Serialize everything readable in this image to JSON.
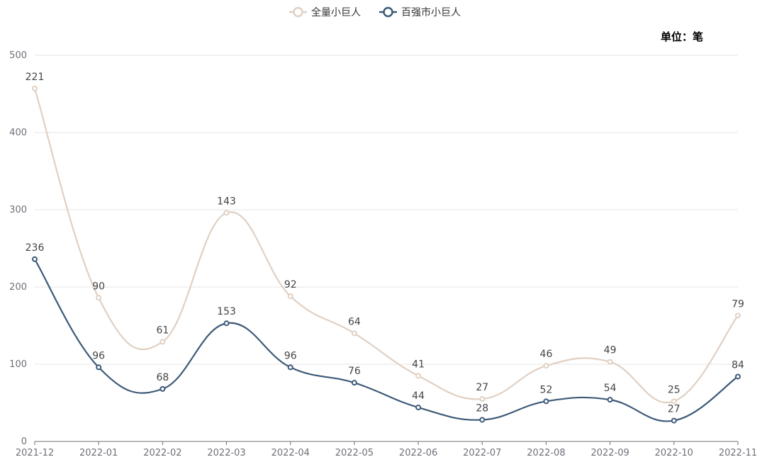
{
  "chart_data": {
    "type": "line",
    "title": "",
    "unit_label": "单位：笔",
    "categories": [
      "2021-12",
      "2022-01",
      "2022-02",
      "2022-03",
      "2022-04",
      "2022-05",
      "2022-06",
      "2022-07",
      "2022-08",
      "2022-09",
      "2022-10",
      "2022-11"
    ],
    "ylim": [
      0,
      500
    ],
    "yticks": [
      0,
      100,
      200,
      300,
      400,
      500
    ],
    "grid": true,
    "smooth": true,
    "legend_position": "top-center",
    "series": [
      {
        "name": "全量小巨人",
        "color": "#e0d0c3",
        "values": [
          457,
          186,
          129,
          296,
          188,
          140,
          85,
          55,
          98,
          103,
          52,
          163
        ],
        "labels": [
          "221",
          "90",
          "61",
          "143",
          "92",
          "64",
          "41",
          "27",
          "46",
          "49",
          "25",
          "79"
        ]
      },
      {
        "name": "百强市小巨人",
        "color": "#3d5a78",
        "values": [
          236,
          96,
          68,
          153,
          96,
          76,
          44,
          28,
          52,
          54,
          27,
          84
        ],
        "labels": [
          "236",
          "96",
          "68",
          "153",
          "96",
          "76",
          "44",
          "28",
          "52",
          "54",
          "27",
          "84"
        ]
      }
    ]
  }
}
